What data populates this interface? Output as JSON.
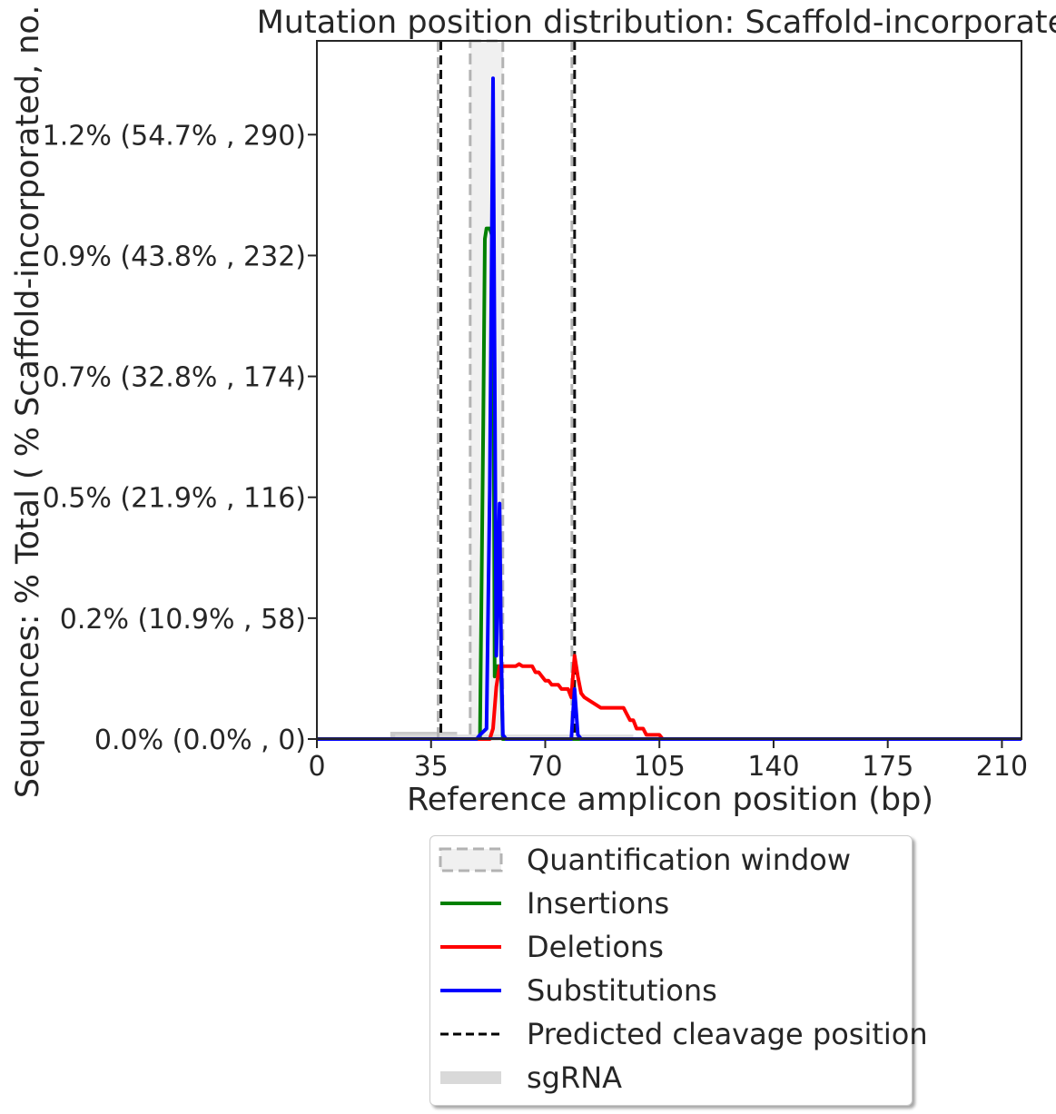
{
  "chart_data": {
    "type": "line",
    "title": "Mutation position distribution: Scaffold-incorporated",
    "xlabel": "Reference amplicon position (bp)",
    "ylabel": "Sequences: % Total ( % Scaffold-incorporated, no. )",
    "xlim": [
      0,
      216
    ],
    "ylim": [
      0,
      335
    ],
    "x_ticks": [
      0,
      35,
      70,
      105,
      140,
      175,
      210
    ],
    "y_ticks": [
      {
        "value": 0,
        "label": "0.0% (0.0% , 0)"
      },
      {
        "value": 58,
        "label": "0.2% (10.9% , 58)"
      },
      {
        "value": 116,
        "label": "0.5% (21.9% , 116)"
      },
      {
        "value": 174,
        "label": "0.7% (32.8% , 174)"
      },
      {
        "value": 232,
        "label": "0.9% (43.8% , 232)"
      },
      {
        "value": 290,
        "label": "1.2% (54.7% , 290)"
      }
    ],
    "grid": false,
    "quantification_windows": [
      [
        47,
        57
      ]
    ],
    "cleavage_positions": [
      38,
      79
    ],
    "sgrna_regions": [
      [
        22.5,
        43
      ],
      [
        24,
        97
      ]
    ],
    "series": [
      {
        "name": "Insertions",
        "color": "#008000",
        "x": [
          0,
          50,
          51,
          51.5,
          52,
          53,
          54,
          54.5,
          55,
          56,
          56.5,
          57,
          216
        ],
        "y": [
          0,
          0,
          150,
          240,
          245,
          245,
          240,
          30,
          35,
          35,
          30,
          0,
          0
        ]
      },
      {
        "name": "Deletions",
        "color": "#ff0000",
        "x": [
          0,
          53,
          54,
          55,
          56,
          58,
          61,
          62,
          63,
          66,
          67,
          68,
          70,
          71,
          72,
          74,
          75,
          77,
          78,
          79,
          80,
          81,
          82,
          84,
          87,
          94,
          95,
          96,
          97,
          98,
          100,
          101,
          105,
          106,
          216
        ],
        "y": [
          0,
          0,
          5,
          25,
          35,
          35,
          35,
          36,
          35,
          35,
          32,
          32,
          28,
          28,
          26,
          26,
          24,
          24,
          20,
          40,
          30,
          22,
          20,
          18,
          15,
          15,
          12,
          9,
          9,
          5,
          5,
          2,
          2,
          0,
          0
        ]
      },
      {
        "name": "Substitutions",
        "color": "#0000ff",
        "x": [
          0,
          49,
          50,
          52,
          53,
          54,
          55,
          56,
          56.5,
          57,
          58,
          78,
          79,
          80,
          81,
          216
        ],
        "y": [
          0,
          0,
          2,
          5,
          120,
          317,
          40,
          113,
          40,
          2,
          0,
          0,
          24,
          2,
          0,
          0
        ]
      }
    ]
  },
  "legend": {
    "items": [
      {
        "label": "Quantification window",
        "kind": "window"
      },
      {
        "label": "Insertions",
        "kind": "line",
        "color": "#008000"
      },
      {
        "label": "Deletions",
        "kind": "line",
        "color": "#ff0000"
      },
      {
        "label": "Substitutions",
        "kind": "line",
        "color": "#0000ff"
      },
      {
        "label": "Predicted cleavage position",
        "kind": "dashed",
        "color": "#000000"
      },
      {
        "label": "sgRNA",
        "kind": "band",
        "color": "#d9d9d9"
      }
    ]
  }
}
